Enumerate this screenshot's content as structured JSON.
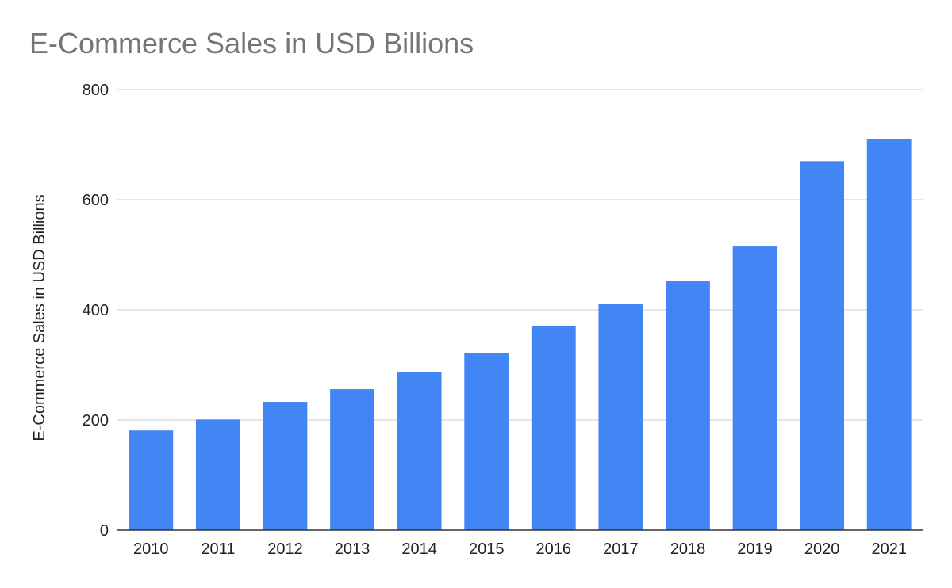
{
  "chart_data": {
    "type": "bar",
    "title": "E-Commerce Sales in USD Billions",
    "xlabel": "",
    "ylabel": "E-Commerce Sales in USD Billions",
    "categories": [
      "2010",
      "2011",
      "2012",
      "2013",
      "2014",
      "2015",
      "2016",
      "2017",
      "2018",
      "2019",
      "2020",
      "2021"
    ],
    "series": [
      {
        "values": [
          181,
          201,
          233,
          256,
          287,
          322,
          371,
          411,
          452,
          515,
          670,
          710
        ]
      }
    ],
    "ylim": [
      0,
      800
    ],
    "yticks": [
      "0",
      "200",
      "400",
      "600",
      "800"
    ],
    "grid": true,
    "legend": "none",
    "colors": {
      "bar": "#4285f4",
      "grid": "#cccccc",
      "axis": "#333333"
    }
  }
}
